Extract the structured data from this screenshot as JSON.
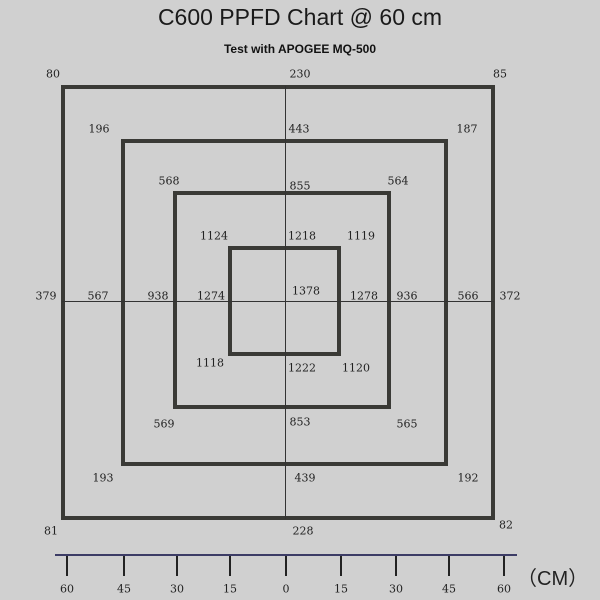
{
  "title": "C600  PPFD Chart @ 60 cm",
  "subtitle": "Test with APOGEE MQ-500",
  "readings": {
    "outer": {
      "top_left": "80",
      "top": "230",
      "top_right": "85",
      "left": "379",
      "right": "372",
      "bottom_left": "81",
      "bottom": "228",
      "bottom_right": "82"
    },
    "ring2": {
      "top_left": "196",
      "top": "443",
      "top_right": "187",
      "left": "567",
      "right": "566",
      "bottom_left": "193",
      "bottom": "439",
      "bottom_right": "192"
    },
    "ring3": {
      "top_left": "568",
      "top": "855",
      "top_right": "564",
      "left": "938",
      "right": "936",
      "bottom_left": "569",
      "bottom": "853",
      "bottom_right": "565"
    },
    "inner": {
      "top_left": "1124",
      "top": "1218",
      "top_right": "1119",
      "left": "1274",
      "right": "1278",
      "bottom_left": "1118",
      "bottom": "1222",
      "bottom_right": "1120"
    },
    "center": "1378"
  },
  "axis": {
    "ticks": [
      "60",
      "45",
      "30",
      "15",
      "0",
      "15",
      "30",
      "45",
      "60"
    ],
    "unit": "（CM）"
  }
}
